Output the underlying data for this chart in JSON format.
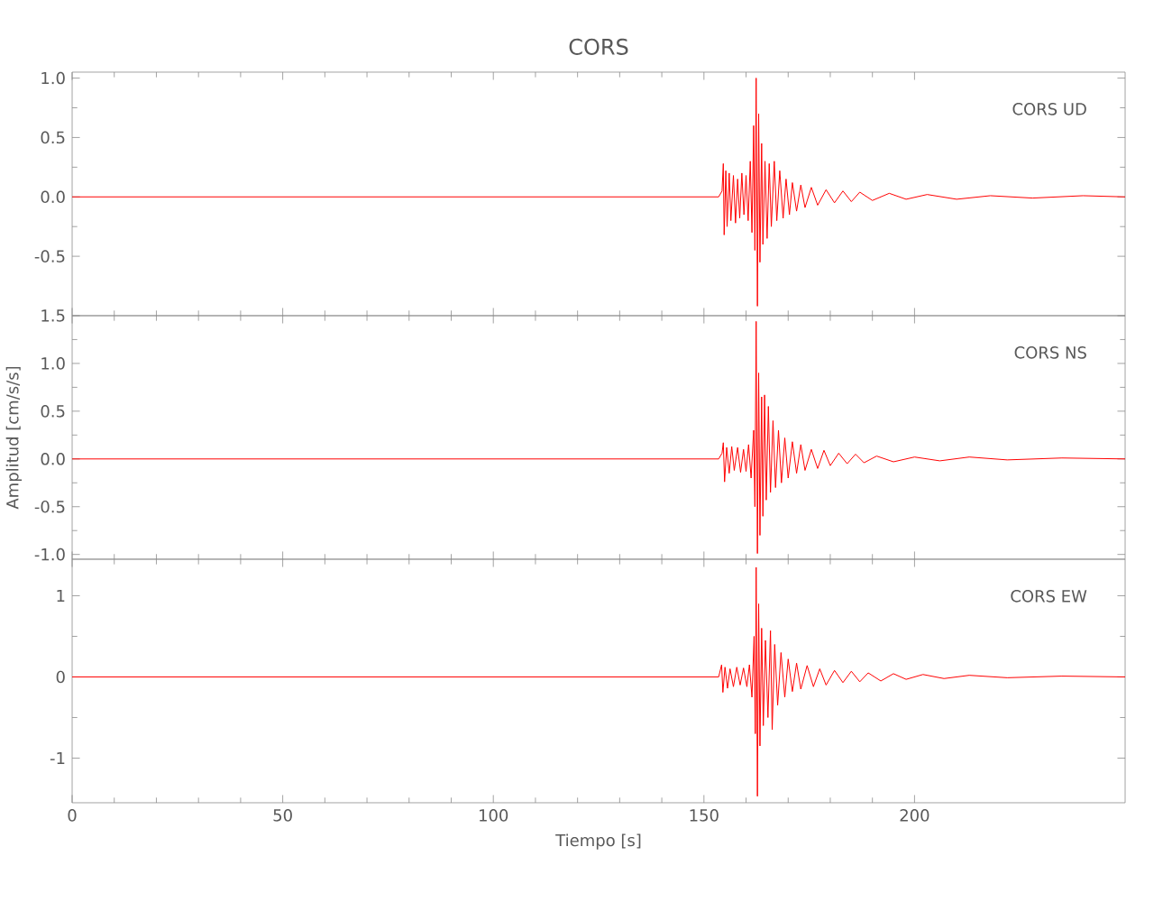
{
  "chart_data": [
    {
      "type": "line",
      "title": "CORS",
      "annotations": [
        "CORS UD"
      ],
      "color": "#ff0000",
      "xlim": [
        0,
        250
      ],
      "xticks": [
        0,
        50,
        100,
        150,
        200
      ],
      "ylim": [
        -1.0,
        1.05
      ],
      "yticks": [
        {
          "value": 1,
          "label": "1.0"
        },
        {
          "value": 0.5,
          "label": "0.5"
        },
        {
          "value": 0,
          "label": "0.0"
        },
        {
          "value": -0.5,
          "label": "-0.5"
        }
      ],
      "tick_labels": "y",
      "x": [
        0,
        153.5,
        154.3,
        154.6,
        154.8,
        155.2,
        155.5,
        156,
        156.4,
        157,
        157.5,
        158,
        158.5,
        159,
        159.5,
        160,
        160.5,
        161,
        161.4,
        161.8,
        162.1,
        162.4,
        162.7,
        163,
        163.3,
        163.7,
        164,
        164.5,
        165,
        165.5,
        166,
        166.7,
        167.3,
        168,
        168.8,
        169.5,
        170.3,
        171,
        172,
        173,
        174,
        175.5,
        177,
        179,
        181,
        183,
        185,
        187,
        190,
        194,
        198,
        203,
        210,
        218,
        228,
        240,
        250
      ],
      "values": [
        0,
        0,
        0.05,
        0.28,
        -0.32,
        0.22,
        -0.25,
        0.2,
        -0.2,
        0.18,
        -0.22,
        0.15,
        -0.18,
        0.2,
        -0.15,
        0.18,
        -0.2,
        0.3,
        -0.3,
        0.6,
        -0.45,
        1.0,
        -0.92,
        0.7,
        -0.55,
        0.45,
        -0.4,
        0.3,
        -0.35,
        0.28,
        -0.25,
        0.3,
        -0.2,
        0.22,
        -0.18,
        0.15,
        -0.15,
        0.12,
        -0.12,
        0.1,
        -0.09,
        0.08,
        -0.07,
        0.06,
        -0.05,
        0.05,
        -0.04,
        0.04,
        -0.03,
        0.03,
        -0.02,
        0.02,
        -0.02,
        0.01,
        -0.01,
        0.01,
        0
      ]
    },
    {
      "type": "line",
      "ylabel": "Amplitud [cm/s/s]",
      "annotations": [
        "CORS NS"
      ],
      "color": "#ff0000",
      "xlim": [
        0,
        250
      ],
      "xticks": [
        0,
        50,
        100,
        150,
        200
      ],
      "ylim": [
        -1.05,
        1.5
      ],
      "yticks": [
        {
          "value": 1.5,
          "label": "1.5"
        },
        {
          "value": 1,
          "label": "1.0"
        },
        {
          "value": 0.5,
          "label": "0.5"
        },
        {
          "value": 0,
          "label": "0.0"
        },
        {
          "value": -0.5,
          "label": "-0.5"
        },
        {
          "value": -1,
          "label": "-1.0"
        }
      ],
      "tick_labels": "y",
      "x": [
        0,
        153.5,
        154.3,
        154.6,
        154.9,
        155.4,
        156,
        156.6,
        157.2,
        158,
        158.7,
        159.4,
        160,
        160.6,
        161.2,
        161.8,
        162.1,
        162.4,
        162.7,
        163,
        163.3,
        163.7,
        164,
        164.4,
        164.8,
        165.3,
        165.8,
        166.4,
        167,
        167.7,
        168.4,
        169.2,
        170,
        171,
        172,
        173,
        174,
        175.5,
        177,
        178.5,
        180,
        182,
        184,
        186,
        188,
        191,
        195,
        200,
        206,
        213,
        222,
        235,
        250
      ],
      "values": [
        0,
        0,
        0.06,
        0.17,
        -0.24,
        0.12,
        -0.15,
        0.13,
        -0.12,
        0.12,
        -0.14,
        0.1,
        -0.13,
        0.15,
        -0.2,
        0.3,
        -0.5,
        1.44,
        -0.99,
        0.9,
        -0.8,
        0.65,
        -0.6,
        0.67,
        -0.43,
        0.55,
        -0.35,
        0.4,
        -0.3,
        0.3,
        -0.25,
        0.22,
        -0.2,
        0.18,
        -0.15,
        0.15,
        -0.12,
        0.1,
        -0.1,
        0.09,
        -0.07,
        0.06,
        -0.05,
        0.05,
        -0.04,
        0.03,
        -0.03,
        0.02,
        -0.02,
        0.02,
        -0.01,
        0.01,
        0
      ]
    },
    {
      "type": "line",
      "xlabel": "Tiempo [s]",
      "annotations": [
        "CORS EW"
      ],
      "color": "#ff0000",
      "xlim": [
        0,
        250
      ],
      "xticks": [
        0,
        50,
        100,
        150,
        200
      ],
      "ylim": [
        -1.55,
        1.45
      ],
      "yticks": [
        1,
        0,
        -1
      ],
      "x": [
        0,
        153.5,
        154.2,
        154.5,
        155,
        155.6,
        156.2,
        157,
        157.8,
        158.6,
        159.4,
        160.2,
        160.8,
        161.4,
        161.9,
        162.2,
        162.4,
        162.7,
        163,
        163.3,
        163.7,
        164.1,
        164.6,
        165.2,
        165.8,
        166.2,
        166.8,
        167.5,
        168.3,
        169.2,
        170,
        171,
        172,
        173,
        174.5,
        176,
        177.5,
        179,
        181,
        183,
        185,
        187,
        189,
        192,
        195,
        198,
        202,
        207,
        213,
        222,
        235,
        250
      ],
      "values": [
        0,
        0,
        0.15,
        -0.19,
        0.12,
        -0.14,
        0.1,
        -0.12,
        0.12,
        -0.1,
        0.11,
        -0.12,
        0.15,
        -0.25,
        0.5,
        -0.7,
        1.35,
        -1.47,
        0.9,
        -0.85,
        0.6,
        -0.6,
        0.45,
        -0.5,
        0.57,
        -0.65,
        0.4,
        -0.35,
        0.3,
        -0.25,
        0.22,
        -0.18,
        0.17,
        -0.15,
        0.14,
        -0.12,
        0.1,
        -0.1,
        0.08,
        -0.07,
        0.07,
        -0.06,
        0.05,
        -0.05,
        0.04,
        -0.03,
        0.03,
        -0.02,
        0.02,
        -0.01,
        0.01,
        0
      ]
    }
  ]
}
